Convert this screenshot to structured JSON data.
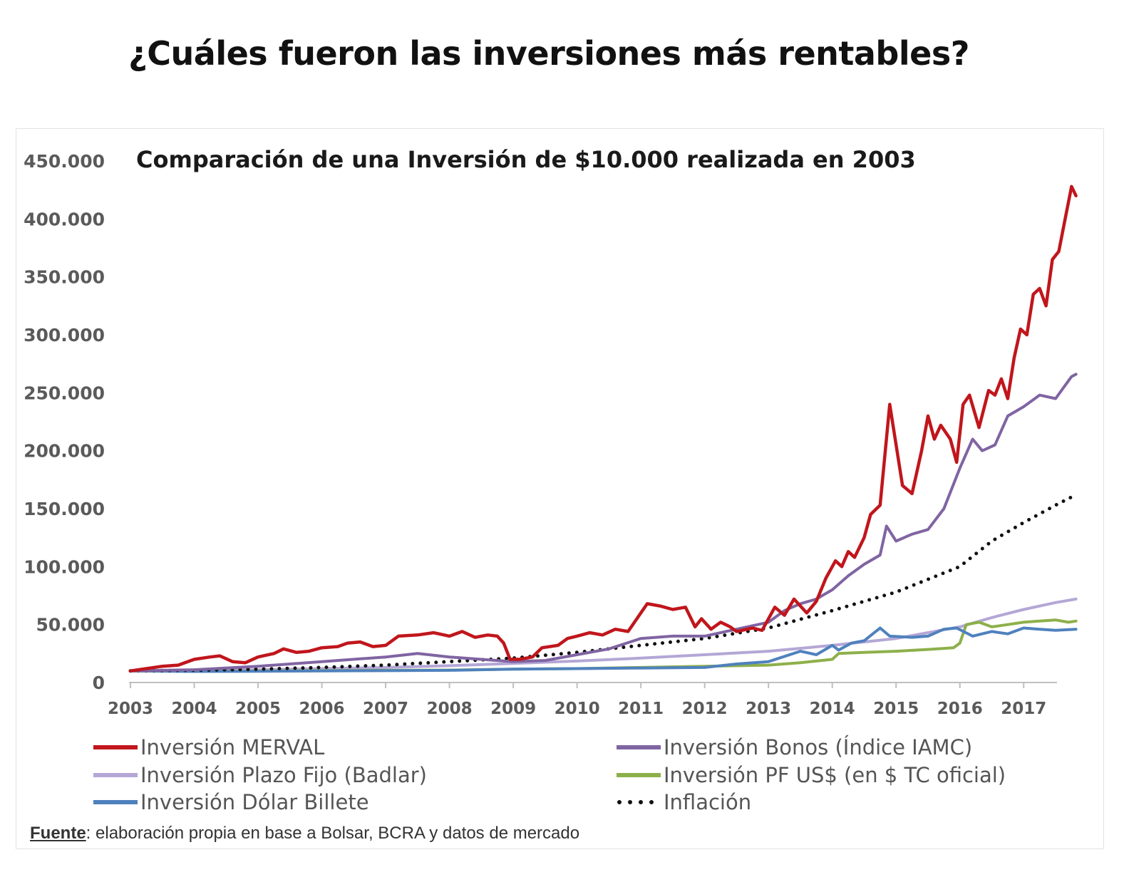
{
  "page_title": "¿Cuáles fueron las inversiones más rentables?",
  "footer": {
    "label": "Fuente",
    "text": ": elaboración propia en base a Bolsar, BCRA y datos de mercado"
  },
  "chart_data": {
    "type": "line",
    "title": "Comparación de una Inversión de $10.000 realizada en 2003",
    "xlabel": "",
    "ylabel": "",
    "xlim": [
      2003,
      2017.5
    ],
    "ylim": [
      0,
      450000
    ],
    "x_ticks": [
      "2003",
      "2004",
      "2005",
      "2006",
      "2007",
      "2008",
      "2009",
      "2010",
      "2011",
      "2012",
      "2013",
      "2014",
      "2015",
      "2016",
      "2017"
    ],
    "y_ticks": [
      {
        "value": 0,
        "label": "0"
      },
      {
        "value": 50000,
        "label": "50.000"
      },
      {
        "value": 100000,
        "label": "100.000"
      },
      {
        "value": 150000,
        "label": "150.000"
      },
      {
        "value": 200000,
        "label": "200.000"
      },
      {
        "value": 250000,
        "label": "250.000"
      },
      {
        "value": 300000,
        "label": "300.000"
      },
      {
        "value": 350000,
        "label": "350.000"
      },
      {
        "value": 400000,
        "label": "400.000"
      },
      {
        "value": 450000,
        "label": "450.000"
      }
    ],
    "grid": false,
    "legend_position": "bottom",
    "series": [
      {
        "name": "Inversión MERVAL",
        "color": "#c0161c",
        "style": "solid",
        "points": [
          [
            2003,
            10000
          ],
          [
            2003.25,
            12000
          ],
          [
            2003.5,
            14000
          ],
          [
            2003.75,
            15000
          ],
          [
            2004,
            20000
          ],
          [
            2004.25,
            22000
          ],
          [
            2004.4,
            23000
          ],
          [
            2004.6,
            18000
          ],
          [
            2004.8,
            17000
          ],
          [
            2005,
            22000
          ],
          [
            2005.25,
            25000
          ],
          [
            2005.4,
            29000
          ],
          [
            2005.6,
            26000
          ],
          [
            2005.8,
            27000
          ],
          [
            2006,
            30000
          ],
          [
            2006.25,
            31000
          ],
          [
            2006.4,
            34000
          ],
          [
            2006.6,
            35000
          ],
          [
            2006.8,
            31000
          ],
          [
            2007,
            32000
          ],
          [
            2007.2,
            40000
          ],
          [
            2007.5,
            41000
          ],
          [
            2007.75,
            43000
          ],
          [
            2008,
            40000
          ],
          [
            2008.2,
            44000
          ],
          [
            2008.4,
            39000
          ],
          [
            2008.6,
            41000
          ],
          [
            2008.75,
            40000
          ],
          [
            2008.85,
            34000
          ],
          [
            2008.95,
            20000
          ],
          [
            2009.1,
            20000
          ],
          [
            2009.3,
            22000
          ],
          [
            2009.45,
            30000
          ],
          [
            2009.7,
            32000
          ],
          [
            2009.85,
            38000
          ],
          [
            2010,
            40000
          ],
          [
            2010.2,
            43000
          ],
          [
            2010.4,
            41000
          ],
          [
            2010.6,
            46000
          ],
          [
            2010.8,
            44000
          ],
          [
            2011,
            60000
          ],
          [
            2011.1,
            68000
          ],
          [
            2011.3,
            66000
          ],
          [
            2011.5,
            63000
          ],
          [
            2011.7,
            65000
          ],
          [
            2011.85,
            48000
          ],
          [
            2011.95,
            55000
          ],
          [
            2012.1,
            46000
          ],
          [
            2012.25,
            52000
          ],
          [
            2012.4,
            48000
          ],
          [
            2012.5,
            44000
          ],
          [
            2012.75,
            47000
          ],
          [
            2012.9,
            45000
          ],
          [
            2013.1,
            65000
          ],
          [
            2013.25,
            58000
          ],
          [
            2013.4,
            72000
          ],
          [
            2013.6,
            60000
          ],
          [
            2013.75,
            70000
          ],
          [
            2013.9,
            90000
          ],
          [
            2014.05,
            105000
          ],
          [
            2014.15,
            100000
          ],
          [
            2014.25,
            113000
          ],
          [
            2014.35,
            108000
          ],
          [
            2014.5,
            125000
          ],
          [
            2014.6,
            145000
          ],
          [
            2014.75,
            153000
          ],
          [
            2014.9,
            240000
          ],
          [
            2015.1,
            170000
          ],
          [
            2015.25,
            163000
          ],
          [
            2015.4,
            200000
          ],
          [
            2015.5,
            230000
          ],
          [
            2015.6,
            210000
          ],
          [
            2015.7,
            222000
          ],
          [
            2015.85,
            210000
          ],
          [
            2015.95,
            190000
          ],
          [
            2016.05,
            240000
          ],
          [
            2016.15,
            248000
          ],
          [
            2016.3,
            220000
          ],
          [
            2016.45,
            252000
          ],
          [
            2016.55,
            248000
          ],
          [
            2016.65,
            262000
          ],
          [
            2016.75,
            245000
          ],
          [
            2016.85,
            280000
          ],
          [
            2016.95,
            305000
          ],
          [
            2017.05,
            300000
          ],
          [
            2017.15,
            335000
          ],
          [
            2017.25,
            340000
          ],
          [
            2017.35,
            325000
          ],
          [
            2017.45,
            365000
          ],
          [
            2017.55,
            372000
          ],
          [
            2017.65,
            400000
          ],
          [
            2017.75,
            428000
          ],
          [
            2017.82,
            420000
          ]
        ]
      },
      {
        "name": "Inversión Bonos (Índice IAMC)",
        "color": "#8064a2",
        "style": "solid",
        "points": [
          [
            2003,
            10000
          ],
          [
            2004,
            11000
          ],
          [
            2005,
            14000
          ],
          [
            2006,
            18000
          ],
          [
            2007,
            22000
          ],
          [
            2007.5,
            25000
          ],
          [
            2008,
            22000
          ],
          [
            2008.5,
            20000
          ],
          [
            2009,
            18000
          ],
          [
            2009.5,
            19000
          ],
          [
            2010,
            24000
          ],
          [
            2010.5,
            29000
          ],
          [
            2011,
            38000
          ],
          [
            2011.5,
            40000
          ],
          [
            2012,
            40000
          ],
          [
            2012.5,
            46000
          ],
          [
            2013,
            52000
          ],
          [
            2013.25,
            62000
          ],
          [
            2013.5,
            68000
          ],
          [
            2013.75,
            72000
          ],
          [
            2014,
            80000
          ],
          [
            2014.25,
            92000
          ],
          [
            2014.5,
            102000
          ],
          [
            2014.75,
            110000
          ],
          [
            2014.85,
            135000
          ],
          [
            2015,
            122000
          ],
          [
            2015.25,
            128000
          ],
          [
            2015.5,
            132000
          ],
          [
            2015.75,
            150000
          ],
          [
            2016,
            185000
          ],
          [
            2016.2,
            210000
          ],
          [
            2016.35,
            200000
          ],
          [
            2016.55,
            205000
          ],
          [
            2016.75,
            230000
          ],
          [
            2017,
            238000
          ],
          [
            2017.25,
            248000
          ],
          [
            2017.5,
            245000
          ],
          [
            2017.75,
            264000
          ],
          [
            2017.82,
            266000
          ]
        ]
      },
      {
        "name": "Inversión Plazo Fijo (Badlar)",
        "color": "#b4a7d6",
        "style": "solid",
        "points": [
          [
            2003,
            10000
          ],
          [
            2004,
            10500
          ],
          [
            2005,
            11000
          ],
          [
            2006,
            12000
          ],
          [
            2007,
            13000
          ],
          [
            2008,
            14500
          ],
          [
            2009,
            16500
          ],
          [
            2010,
            18500
          ],
          [
            2011,
            21000
          ],
          [
            2012,
            24000
          ],
          [
            2013,
            27000
          ],
          [
            2014,
            32000
          ],
          [
            2015,
            38000
          ],
          [
            2016,
            48000
          ],
          [
            2016.5,
            56000
          ],
          [
            2017,
            63000
          ],
          [
            2017.5,
            69000
          ],
          [
            2017.82,
            72000
          ]
        ]
      },
      {
        "name": "Inversión PF US$ (en $ TC oficial)",
        "color": "#8db04a",
        "style": "solid",
        "points": [
          [
            2003,
            10000
          ],
          [
            2004,
            9800
          ],
          [
            2005,
            9900
          ],
          [
            2006,
            10200
          ],
          [
            2007,
            10500
          ],
          [
            2008,
            10700
          ],
          [
            2009,
            11500
          ],
          [
            2010,
            12000
          ],
          [
            2011,
            13000
          ],
          [
            2012,
            14000
          ],
          [
            2013,
            15000
          ],
          [
            2013.5,
            17000
          ],
          [
            2014,
            20000
          ],
          [
            2014.1,
            25000
          ],
          [
            2014.5,
            26000
          ],
          [
            2015,
            27000
          ],
          [
            2015.5,
            28500
          ],
          [
            2015.9,
            30000
          ],
          [
            2016,
            34000
          ],
          [
            2016.1,
            50000
          ],
          [
            2016.3,
            52000
          ],
          [
            2016.5,
            48000
          ],
          [
            2016.75,
            50000
          ],
          [
            2017,
            52000
          ],
          [
            2017.25,
            53000
          ],
          [
            2017.5,
            54000
          ],
          [
            2017.7,
            52000
          ],
          [
            2017.82,
            53000
          ]
        ]
      },
      {
        "name": "Inversión Dólar Billete",
        "color": "#4f81bd",
        "style": "solid",
        "points": [
          [
            2003,
            10000
          ],
          [
            2004,
            9500
          ],
          [
            2005,
            9700
          ],
          [
            2006,
            10000
          ],
          [
            2007,
            10200
          ],
          [
            2008,
            10500
          ],
          [
            2009,
            11500
          ],
          [
            2010,
            12000
          ],
          [
            2011,
            12500
          ],
          [
            2012,
            13000
          ],
          [
            2012.5,
            16000
          ],
          [
            2013,
            18000
          ],
          [
            2013.5,
            27000
          ],
          [
            2013.75,
            24000
          ],
          [
            2014,
            32000
          ],
          [
            2014.1,
            28000
          ],
          [
            2014.3,
            34000
          ],
          [
            2014.5,
            36000
          ],
          [
            2014.75,
            47000
          ],
          [
            2014.9,
            40000
          ],
          [
            2015.25,
            39000
          ],
          [
            2015.5,
            40000
          ],
          [
            2015.75,
            46000
          ],
          [
            2015.95,
            47000
          ],
          [
            2016.2,
            40000
          ],
          [
            2016.5,
            44000
          ],
          [
            2016.75,
            42000
          ],
          [
            2017,
            47000
          ],
          [
            2017.25,
            46000
          ],
          [
            2017.5,
            45000
          ],
          [
            2017.82,
            46000
          ]
        ]
      },
      {
        "name": "Inflación",
        "color": "#111111",
        "style": "dotted",
        "points": [
          [
            2003,
            10000
          ],
          [
            2004,
            10500
          ],
          [
            2005,
            11500
          ],
          [
            2006,
            13000
          ],
          [
            2007,
            15000
          ],
          [
            2008,
            18000
          ],
          [
            2009,
            21000
          ],
          [
            2010,
            26000
          ],
          [
            2011,
            32000
          ],
          [
            2012,
            38000
          ],
          [
            2013,
            47000
          ],
          [
            2014,
            62000
          ],
          [
            2015,
            78000
          ],
          [
            2016,
            100000
          ],
          [
            2016.5,
            122000
          ],
          [
            2017,
            138000
          ],
          [
            2017.5,
            153000
          ],
          [
            2017.82,
            162000
          ]
        ]
      }
    ]
  }
}
